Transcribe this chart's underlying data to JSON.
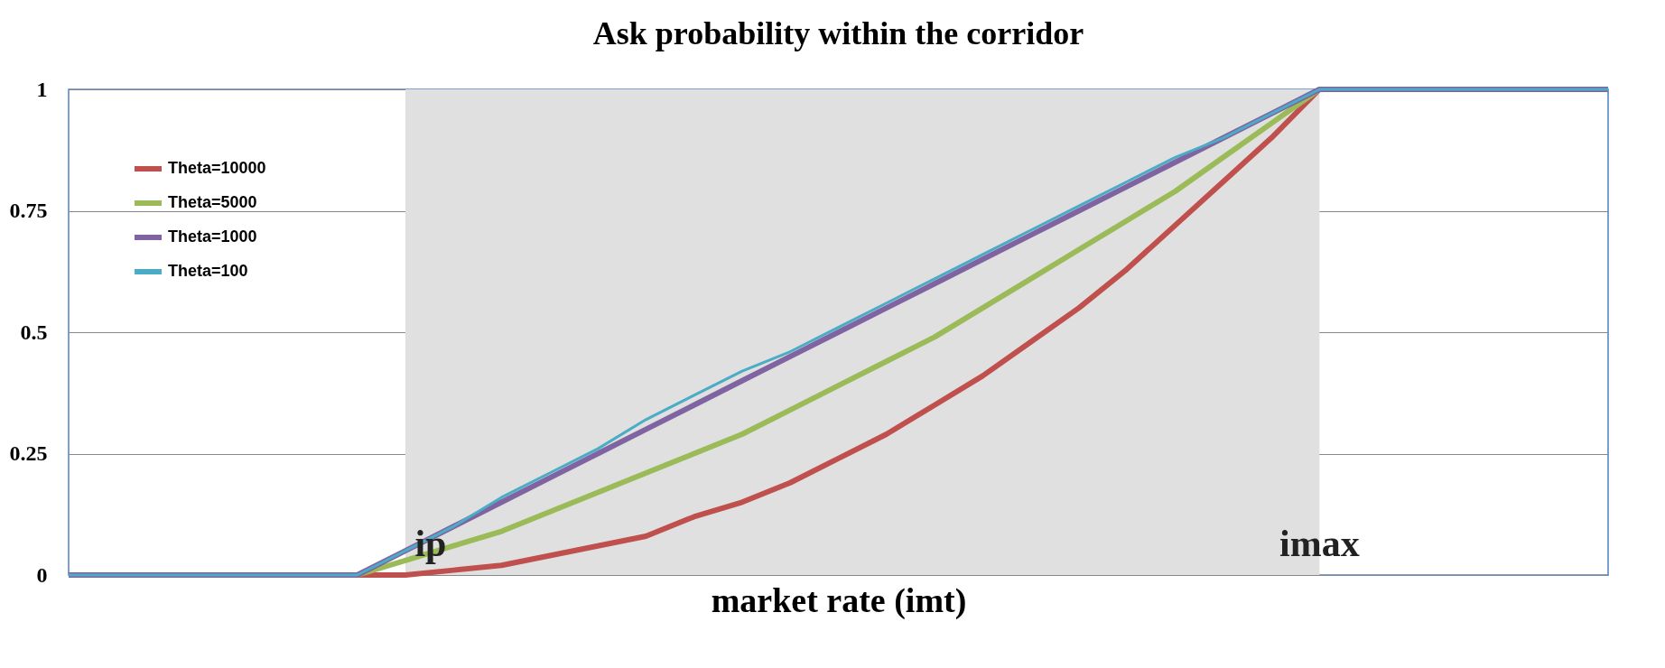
{
  "chart_data": {
    "type": "line",
    "title": "Ask probability within the corridor",
    "xlabel": "market rate (imt)",
    "categories": [
      null,
      null,
      null,
      null,
      null,
      null,
      null,
      null,
      null,
      null,
      null,
      null,
      null,
      null,
      null,
      null,
      null,
      null,
      null,
      null,
      null,
      null,
      null,
      null,
      null,
      null,
      null,
      null,
      null,
      null,
      null,
      null,
      null
    ],
    "series": [
      {
        "name": "Theta=10000",
        "color": "#c0504d",
        "values": [
          null,
          null,
          null,
          null,
          null,
          0,
          0,
          0,
          0.01,
          0.02,
          0.04,
          0.06,
          0.08,
          0.12,
          0.15,
          0.19,
          0.24,
          0.29,
          0.35,
          0.41,
          0.48,
          0.55,
          0.63,
          0.72,
          0.81,
          0.9,
          1,
          null,
          null,
          null,
          null,
          null,
          null
        ]
      },
      {
        "name": "Theta=5000",
        "color": "#9bbb59",
        "values": [
          null,
          null,
          null,
          null,
          null,
          0,
          0,
          0.03,
          0.06,
          0.09,
          0.13,
          0.17,
          0.21,
          0.25,
          0.29,
          0.34,
          0.39,
          0.44,
          0.49,
          0.55,
          0.61,
          0.67,
          0.73,
          0.79,
          0.86,
          0.93,
          1,
          null,
          null,
          null,
          null,
          null,
          null
        ]
      },
      {
        "name": "Theta=1000",
        "color": "#8064a2",
        "values": [
          0,
          0,
          0,
          0,
          0,
          0,
          0,
          0.05,
          0.1,
          0.15,
          0.2,
          0.25,
          0.3,
          0.35,
          0.4,
          0.45,
          0.5,
          0.55,
          0.6,
          0.65,
          0.7,
          0.75,
          0.8,
          0.85,
          0.9,
          0.95,
          1,
          1,
          1,
          1,
          1,
          1,
          1
        ]
      },
      {
        "name": "Theta=100",
        "color": "#4bacc6",
        "values": [
          0,
          0,
          0,
          0,
          0,
          0,
          0,
          0.05,
          0.1,
          0.16,
          0.21,
          0.26,
          0.32,
          0.37,
          0.42,
          0.46,
          0.51,
          0.56,
          0.61,
          0.66,
          0.71,
          0.76,
          0.81,
          0.86,
          0.9,
          0.95,
          1,
          1,
          1,
          1,
          1,
          1,
          1
        ]
      }
    ],
    "annotations": [
      "ip",
      "imax"
    ],
    "ylim": [
      0,
      1
    ],
    "yticks": [
      0,
      0.25,
      0.5,
      0.75,
      1
    ],
    "grid": "y",
    "legend": "top left",
    "marker": "none",
    "line_style": "solid"
  }
}
